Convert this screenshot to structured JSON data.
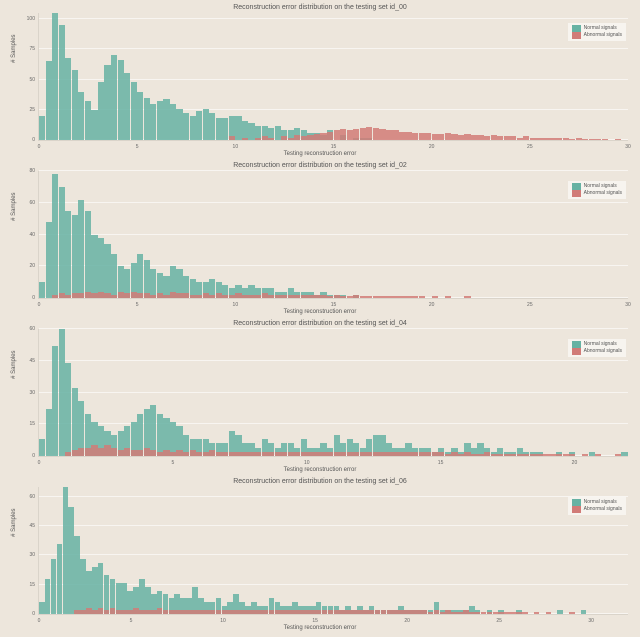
{
  "global": {
    "background_color": "#ede6dc",
    "ylabel": "# Samples",
    "xlabel": "Testing reconstruction error",
    "legend": {
      "normal": "Normal signals",
      "abnormal": "Abnormal signals"
    },
    "colors": {
      "normal": "#66b2a3",
      "abnormal": "#d17b77"
    },
    "grid_color": "rgba(255,255,255,0.6)",
    "title_fontsize": 7,
    "label_fontsize": 6,
    "tick_fontsize": 5
  },
  "charts": [
    {
      "title": "Reconstruction error distribution on the testing set id_00",
      "ymax": 105,
      "ysteps": [
        0,
        25,
        50,
        75,
        100
      ],
      "xmax": 30,
      "xsteps": [
        0,
        5,
        10,
        15,
        20,
        25,
        30
      ],
      "bins": 90,
      "normal": [
        20,
        65,
        105,
        95,
        68,
        58,
        40,
        32,
        25,
        48,
        62,
        70,
        66,
        55,
        48,
        40,
        35,
        30,
        32,
        34,
        30,
        26,
        22,
        20,
        24,
        26,
        22,
        18,
        18,
        20,
        20,
        16,
        14,
        12,
        12,
        10,
        12,
        8,
        8,
        10,
        8,
        6,
        6,
        4,
        8,
        0,
        4,
        0,
        2,
        2,
        2,
        0,
        0,
        0,
        0,
        0,
        0,
        0,
        0,
        0,
        0,
        0,
        0,
        0,
        0,
        0,
        0,
        0,
        0,
        0,
        0,
        0,
        0,
        0,
        0,
        0,
        0,
        0,
        0,
        0,
        0,
        0,
        0,
        0,
        0,
        0,
        0,
        0,
        0,
        0
      ],
      "abnormal": [
        0,
        0,
        0,
        0,
        0,
        0,
        0,
        0,
        0,
        0,
        0,
        0,
        0,
        0,
        0,
        0,
        0,
        0,
        0,
        0,
        0,
        0,
        0,
        0,
        0,
        0,
        0,
        0,
        0,
        3,
        0,
        2,
        0,
        2,
        3,
        2,
        0,
        3,
        2,
        4,
        3,
        4,
        5,
        6,
        7,
        8,
        9,
        8,
        9,
        10,
        11,
        10,
        9,
        8,
        8,
        7,
        7,
        6,
        6,
        6,
        5,
        5,
        6,
        5,
        4,
        5,
        4,
        4,
        3,
        4,
        3,
        3,
        3,
        2,
        3,
        2,
        2,
        2,
        2,
        2,
        2,
        1,
        2,
        1,
        1,
        1,
        1,
        0,
        1,
        0
      ]
    },
    {
      "title": "Reconstruction error distribution on the testing set id_02",
      "ymax": 80,
      "ysteps": [
        0,
        20,
        40,
        60,
        80
      ],
      "xmax": 30,
      "xsteps": [
        0,
        5,
        10,
        15,
        20,
        25,
        30
      ],
      "bins": 90,
      "normal": [
        10,
        48,
        78,
        70,
        55,
        52,
        62,
        55,
        40,
        38,
        34,
        28,
        20,
        18,
        22,
        28,
        24,
        18,
        16,
        14,
        20,
        18,
        14,
        12,
        10,
        10,
        12,
        10,
        8,
        6,
        8,
        6,
        8,
        6,
        6,
        6,
        4,
        4,
        6,
        4,
        4,
        4,
        2,
        4,
        2,
        2,
        2,
        0,
        2,
        0,
        0,
        0,
        0,
        0,
        0,
        0,
        0,
        0,
        0,
        0,
        0,
        0,
        0,
        0,
        0,
        0,
        0,
        0,
        0,
        0,
        0,
        0,
        0,
        0,
        0,
        0,
        0,
        0,
        0,
        0,
        0,
        0,
        0,
        0,
        0,
        0,
        0,
        0,
        0,
        0
      ],
      "abnormal": [
        0,
        0,
        2,
        3,
        2,
        3,
        3,
        4,
        3,
        4,
        3,
        2,
        4,
        3,
        4,
        3,
        3,
        2,
        3,
        2,
        4,
        3,
        3,
        2,
        2,
        3,
        2,
        3,
        2,
        2,
        3,
        2,
        2,
        2,
        3,
        2,
        2,
        2,
        2,
        2,
        2,
        2,
        2,
        2,
        1,
        2,
        1,
        1,
        2,
        1,
        1,
        1,
        1,
        1,
        1,
        1,
        1,
        1,
        1,
        0,
        1,
        0,
        1,
        0,
        0,
        1,
        0,
        0,
        0,
        0,
        0,
        0,
        0,
        0,
        0,
        0,
        0,
        0,
        0,
        0,
        0,
        0,
        0,
        0,
        0,
        0,
        0,
        0,
        0,
        0
      ]
    },
    {
      "title": "Reconstruction error distribution on the testing set id_04",
      "ymax": 60,
      "ysteps": [
        0,
        15,
        30,
        45,
        60
      ],
      "xmax": 22,
      "xsteps": [
        0,
        5,
        10,
        15,
        20
      ],
      "bins": 90,
      "normal": [
        8,
        22,
        52,
        60,
        44,
        32,
        26,
        20,
        16,
        14,
        12,
        10,
        12,
        14,
        16,
        20,
        22,
        24,
        20,
        18,
        16,
        14,
        10,
        8,
        8,
        8,
        6,
        6,
        6,
        12,
        10,
        6,
        6,
        4,
        8,
        6,
        4,
        6,
        6,
        4,
        8,
        4,
        4,
        6,
        4,
        10,
        6,
        8,
        6,
        4,
        8,
        10,
        10,
        6,
        4,
        4,
        6,
        4,
        4,
        4,
        2,
        4,
        2,
        4,
        2,
        6,
        4,
        6,
        4,
        2,
        4,
        2,
        2,
        4,
        2,
        2,
        2,
        0,
        0,
        2,
        0,
        2,
        0,
        0,
        2,
        0,
        0,
        0,
        0,
        2
      ],
      "abnormal": [
        0,
        0,
        0,
        0,
        2,
        3,
        4,
        4,
        5,
        4,
        5,
        4,
        3,
        4,
        3,
        3,
        4,
        3,
        2,
        3,
        2,
        3,
        2,
        3,
        2,
        2,
        3,
        2,
        2,
        2,
        2,
        2,
        2,
        2,
        2,
        2,
        2,
        2,
        2,
        2,
        2,
        2,
        2,
        2,
        2,
        2,
        2,
        2,
        2,
        2,
        2,
        2,
        2,
        2,
        2,
        2,
        2,
        2,
        2,
        2,
        2,
        2,
        1,
        2,
        1,
        2,
        1,
        1,
        2,
        1,
        1,
        1,
        1,
        1,
        1,
        1,
        1,
        1,
        1,
        1,
        1,
        1,
        0,
        1,
        0,
        1,
        0,
        0,
        1,
        0
      ]
    },
    {
      "title": "Reconstruction error distribution on the testing set id_06",
      "ymax": 65,
      "ysteps": [
        0,
        15,
        30,
        45,
        60
      ],
      "xmax": 32,
      "xsteps": [
        0,
        5,
        10,
        15,
        20,
        25,
        30
      ],
      "bins": 100,
      "normal": [
        6,
        18,
        28,
        36,
        65,
        55,
        40,
        28,
        22,
        24,
        26,
        20,
        18,
        16,
        16,
        12,
        14,
        18,
        14,
        10,
        12,
        10,
        8,
        10,
        8,
        8,
        14,
        8,
        6,
        6,
        8,
        4,
        6,
        10,
        6,
        4,
        6,
        4,
        4,
        8,
        6,
        4,
        4,
        6,
        4,
        4,
        4,
        6,
        4,
        4,
        4,
        2,
        4,
        2,
        4,
        2,
        4,
        2,
        2,
        2,
        2,
        4,
        2,
        2,
        2,
        2,
        2,
        6,
        2,
        2,
        2,
        2,
        2,
        4,
        2,
        0,
        2,
        0,
        2,
        0,
        0,
        2,
        0,
        0,
        0,
        0,
        0,
        0,
        2,
        0,
        0,
        0,
        2,
        0,
        0,
        0,
        0,
        0,
        0,
        0
      ],
      "abnormal": [
        0,
        0,
        0,
        0,
        0,
        0,
        2,
        2,
        3,
        2,
        3,
        2,
        3,
        2,
        2,
        2,
        3,
        2,
        2,
        2,
        3,
        2,
        2,
        2,
        2,
        2,
        2,
        2,
        2,
        2,
        2,
        2,
        2,
        2,
        2,
        2,
        2,
        2,
        2,
        2,
        2,
        2,
        2,
        2,
        2,
        2,
        2,
        2,
        2,
        2,
        2,
        2,
        2,
        2,
        2,
        2,
        2,
        2,
        2,
        2,
        2,
        2,
        2,
        2,
        2,
        2,
        1,
        2,
        1,
        2,
        1,
        1,
        2,
        1,
        1,
        1,
        1,
        1,
        1,
        1,
        1,
        1,
        1,
        0,
        1,
        0,
        1,
        0,
        0,
        0,
        1,
        0,
        0,
        0,
        0,
        0,
        0,
        0,
        0,
        0
      ]
    }
  ]
}
